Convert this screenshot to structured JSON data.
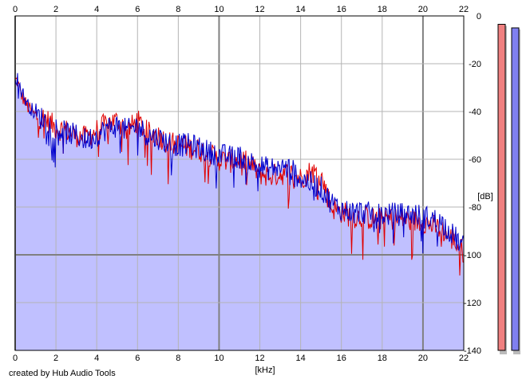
{
  "credit": "created by Hub Audio Tools",
  "chart_data": {
    "type": "line",
    "xlabel": "[kHz]",
    "ylabel": "[dB]",
    "xlim": [
      0,
      22
    ],
    "ylim": [
      -140,
      0
    ],
    "x_ticks": [
      0,
      2,
      4,
      6,
      8,
      10,
      12,
      14,
      16,
      18,
      20,
      22
    ],
    "y_ticks": [
      0,
      -20,
      -40,
      -60,
      -80,
      -100,
      -120,
      -140
    ],
    "grid": true,
    "series": [
      {
        "color": "#e00000",
        "x": [
          0.1,
          0.3,
          0.6,
          1.0,
          1.5,
          2.0,
          2.5,
          3.0,
          3.5,
          4.0,
          4.5,
          5.0,
          5.5,
          6.0,
          6.5,
          7.0,
          7.5,
          8.0,
          8.5,
          9.0,
          9.5,
          10.0,
          10.5,
          11.0,
          11.5,
          12.0,
          12.5,
          13.0,
          13.5,
          14.0,
          14.5,
          15.0,
          15.5,
          16.0,
          16.5,
          17.0,
          17.5,
          18.0,
          18.5,
          19.0,
          19.5,
          20.0,
          20.5,
          21.0,
          21.5,
          22.0
        ],
        "values": [
          -27,
          -33,
          -38,
          -42,
          -43,
          -47,
          -48,
          -50,
          -51,
          -48,
          -45,
          -44,
          -48,
          -44,
          -49,
          -50,
          -53,
          -54,
          -55,
          -56,
          -58,
          -60,
          -61,
          -60,
          -62,
          -66,
          -67,
          -66,
          -66,
          -68,
          -65,
          -67,
          -80,
          -82,
          -84,
          -84,
          -85,
          -85,
          -85,
          -85,
          -86,
          -86,
          -88,
          -90,
          -94,
          -99
        ]
      },
      {
        "color": "#0000cc",
        "x": [
          0.1,
          0.3,
          0.6,
          1.0,
          1.5,
          2.0,
          2.5,
          3.0,
          3.5,
          4.0,
          4.5,
          5.0,
          5.5,
          6.0,
          6.5,
          7.0,
          7.5,
          8.0,
          8.5,
          9.0,
          9.5,
          10.0,
          10.5,
          11.0,
          11.5,
          12.0,
          12.5,
          13.0,
          13.5,
          14.0,
          14.5,
          15.0,
          15.5,
          16.0,
          16.5,
          17.0,
          17.5,
          18.0,
          18.5,
          19.0,
          19.5,
          20.0,
          20.5,
          21.0,
          21.5,
          22.0
        ],
        "values": [
          -26,
          -31,
          -37,
          -41,
          -44,
          -47,
          -49,
          -50,
          -52,
          -50,
          -47,
          -46,
          -48,
          -46,
          -50,
          -51,
          -53,
          -54,
          -54,
          -55,
          -57,
          -58,
          -59,
          -59,
          -61,
          -63,
          -64,
          -63,
          -64,
          -68,
          -70,
          -72,
          -78,
          -81,
          -82,
          -82,
          -83,
          -83,
          -83,
          -83,
          -83,
          -84,
          -85,
          -87,
          -92,
          -97
        ]
      }
    ],
    "meters": [
      {
        "color": "#f08080",
        "value": -3.5
      },
      {
        "color": "#8080f0",
        "value": -5
      }
    ]
  }
}
